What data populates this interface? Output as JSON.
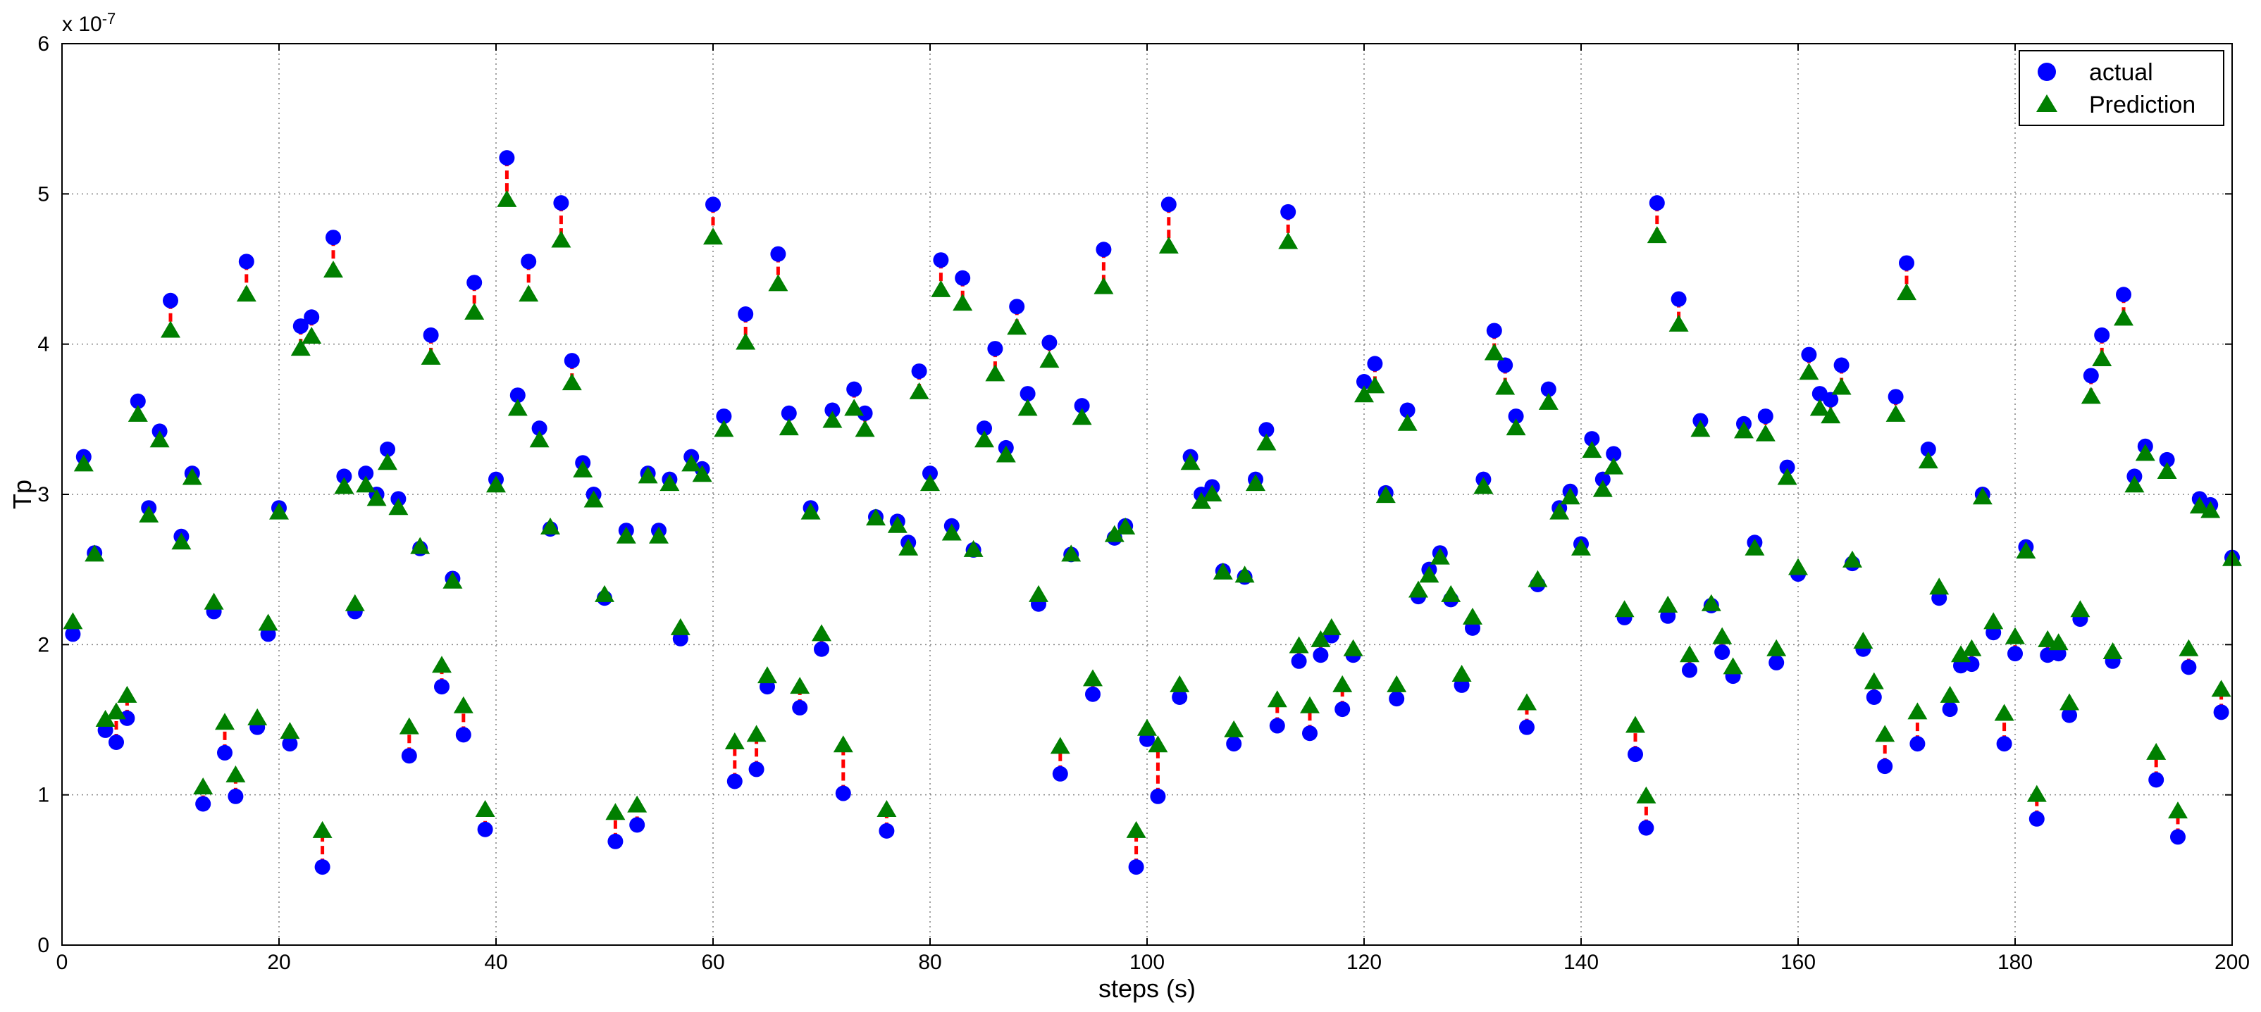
{
  "chart_data": {
    "type": "scatter",
    "title": "",
    "xlabel": "steps (s)",
    "ylabel": "Tp",
    "exponent_label": "x 10",
    "exponent_power": "-7",
    "xlim": [
      0,
      200
    ],
    "ylim": [
      0,
      6
    ],
    "xticks": [
      0,
      20,
      40,
      60,
      80,
      100,
      120,
      140,
      160,
      180,
      200
    ],
    "yticks": [
      0,
      1,
      2,
      3,
      4,
      5,
      6
    ],
    "grid": true,
    "legend": {
      "placement": "top-right",
      "entries": [
        "actual",
        "Prediction"
      ]
    },
    "colors": {
      "actual": "#0000ff",
      "prediction": "#007f00",
      "error": "#ff0000",
      "grid": "#808080"
    },
    "x": [
      1,
      2,
      3,
      4,
      5,
      6,
      7,
      8,
      9,
      10,
      11,
      12,
      13,
      14,
      15,
      16,
      17,
      18,
      19,
      20,
      21,
      22,
      23,
      24,
      25,
      26,
      27,
      28,
      29,
      30,
      31,
      32,
      33,
      34,
      35,
      36,
      37,
      38,
      39,
      40,
      41,
      42,
      43,
      44,
      45,
      46,
      47,
      48,
      49,
      50,
      51,
      52,
      53,
      54,
      55,
      56,
      57,
      58,
      59,
      60,
      61,
      62,
      63,
      64,
      65,
      66,
      67,
      68,
      69,
      70,
      71,
      72,
      73,
      74,
      75,
      76,
      77,
      78,
      79,
      80,
      81,
      82,
      83,
      84,
      85,
      86,
      87,
      88,
      89,
      90,
      91,
      92,
      93,
      94,
      95,
      96,
      97,
      98,
      99,
      100,
      101,
      102,
      103,
      104,
      105,
      106,
      107,
      108,
      109,
      110,
      111,
      112,
      113,
      114,
      115,
      116,
      117,
      118,
      119,
      120,
      121,
      122,
      123,
      124,
      125,
      126,
      127,
      128,
      129,
      130,
      131,
      132,
      133,
      134,
      135,
      136,
      137,
      138,
      139,
      140,
      141,
      142,
      143,
      144,
      145,
      146,
      147,
      148,
      149,
      150,
      151,
      152,
      153,
      154,
      155,
      156,
      157,
      158,
      159,
      160,
      161,
      162,
      163,
      164,
      165,
      166,
      167,
      168,
      169,
      170,
      171,
      172,
      173,
      174,
      175,
      176,
      177,
      178,
      179,
      180,
      181,
      182,
      183,
      184,
      185,
      186,
      187,
      188,
      189,
      190,
      191,
      192,
      193,
      194,
      195,
      196,
      197,
      198,
      199,
      200
    ],
    "series": [
      {
        "name": "actual",
        "values": [
          2.07,
          3.25,
          2.61,
          1.43,
          1.35,
          1.51,
          3.62,
          2.91,
          3.42,
          4.29,
          2.72,
          3.14,
          0.94,
          2.22,
          1.28,
          0.99,
          4.55,
          1.45,
          2.07,
          2.91,
          1.34,
          4.12,
          4.18,
          0.52,
          4.71,
          3.12,
          2.22,
          3.14,
          3.0,
          3.3,
          2.97,
          1.26,
          2.64,
          4.06,
          1.72,
          2.44,
          1.4,
          4.41,
          0.77,
          3.1,
          5.24,
          3.66,
          4.55,
          3.44,
          2.77,
          4.94,
          3.89,
          3.21,
          3.0,
          2.31,
          0.69,
          2.76,
          0.8,
          3.14,
          2.76,
          3.1,
          2.04,
          3.25,
          3.17,
          4.93,
          3.52,
          1.09,
          4.2,
          1.17,
          1.72,
          4.6,
          3.54,
          1.58,
          2.91,
          1.97,
          3.56,
          1.01,
          3.7,
          3.54,
          2.85,
          0.76,
          2.82,
          2.68,
          3.82,
          3.14,
          4.56,
          2.79,
          4.44,
          2.63,
          3.44,
          3.97,
          3.31,
          4.25,
          3.67,
          2.27,
          4.01,
          1.14,
          2.6,
          3.59,
          1.67,
          4.63,
          2.71,
          2.79,
          0.52,
          1.37,
          0.99,
          4.93,
          1.65,
          3.25,
          3.0,
          3.05,
          2.49,
          1.34,
          2.45,
          3.1,
          3.43,
          1.46,
          4.88,
          1.89,
          1.41,
          1.93,
          2.06,
          1.57,
          1.93,
          3.75,
          3.87,
          3.01,
          1.64,
          3.56,
          2.32,
          2.5,
          2.61,
          2.3,
          1.73,
          2.11,
          3.1,
          4.09,
          3.86,
          3.52,
          1.45,
          2.4,
          3.7,
          2.91,
          3.02,
          2.67,
          3.37,
          3.1,
          3.27,
          2.18,
          1.27,
          0.78,
          4.94,
          2.19,
          4.3,
          1.83,
          3.49,
          2.26,
          1.95,
          1.79,
          3.47,
          2.68,
          3.52,
          1.88,
          3.18,
          2.47,
          3.93,
          3.67,
          3.63,
          3.86,
          2.54,
          1.97,
          1.65,
          1.19,
          3.65,
          4.54,
          1.34,
          3.3,
          2.31,
          1.57,
          1.86,
          1.87,
          3.0,
          2.08,
          1.34,
          1.94,
          2.65,
          0.84,
          1.93,
          1.94,
          1.53,
          2.17,
          3.79,
          4.06,
          1.89,
          4.33,
          3.12,
          3.32,
          1.1,
          3.23,
          0.72,
          1.85,
          2.97,
          2.93,
          1.55,
          2.58
        ]
      },
      {
        "name": "Prediction",
        "values": [
          2.15,
          3.2,
          2.6,
          1.5,
          1.55,
          1.66,
          3.53,
          2.86,
          3.36,
          4.09,
          2.68,
          3.11,
          1.05,
          2.28,
          1.48,
          1.13,
          4.33,
          1.51,
          2.14,
          2.88,
          1.42,
          3.97,
          4.05,
          0.76,
          4.49,
          3.05,
          2.27,
          3.06,
          2.97,
          3.21,
          2.91,
          1.45,
          2.65,
          3.91,
          1.86,
          2.42,
          1.59,
          4.21,
          0.9,
          3.06,
          4.96,
          3.57,
          4.33,
          3.36,
          2.78,
          4.69,
          3.74,
          3.16,
          2.96,
          2.33,
          0.88,
          2.72,
          0.93,
          3.12,
          2.72,
          3.07,
          2.11,
          3.2,
          3.13,
          4.71,
          3.43,
          1.35,
          4.01,
          1.4,
          1.79,
          4.4,
          3.44,
          1.72,
          2.88,
          2.07,
          3.49,
          1.33,
          3.57,
          3.43,
          2.84,
          0.9,
          2.79,
          2.64,
          3.68,
          3.07,
          4.36,
          2.74,
          4.27,
          2.63,
          3.36,
          3.8,
          3.26,
          4.11,
          3.57,
          2.33,
          3.89,
          1.32,
          2.6,
          3.51,
          1.77,
          4.38,
          2.73,
          2.78,
          0.76,
          1.44,
          1.33,
          4.65,
          1.73,
          3.21,
          2.95,
          3.0,
          2.48,
          1.43,
          2.46,
          3.07,
          3.34,
          1.63,
          4.68,
          1.99,
          1.59,
          2.03,
          2.11,
          1.73,
          1.97,
          3.66,
          3.72,
          2.99,
          1.73,
          3.47,
          2.36,
          2.46,
          2.58,
          2.33,
          1.8,
          2.18,
          3.05,
          3.94,
          3.71,
          3.44,
          1.61,
          2.43,
          3.61,
          2.88,
          2.98,
          2.64,
          3.29,
          3.03,
          3.18,
          2.23,
          1.46,
          0.99,
          4.72,
          2.26,
          4.13,
          1.93,
          3.43,
          2.27,
          2.05,
          1.85,
          3.42,
          2.64,
          3.4,
          1.97,
          3.11,
          2.51,
          3.81,
          3.57,
          3.52,
          3.71,
          2.56,
          2.02,
          1.75,
          1.4,
          3.53,
          4.34,
          1.55,
          3.22,
          2.38,
          1.66,
          1.93,
          1.97,
          2.98,
          2.15,
          1.54,
          2.05,
          2.62,
          1.0,
          2.03,
          2.01,
          1.61,
          2.23,
          3.65,
          3.9,
          1.95,
          4.17,
          3.06,
          3.27,
          1.28,
          3.15,
          0.89,
          1.97,
          2.92,
          2.89,
          1.7,
          2.57
        ]
      }
    ]
  }
}
